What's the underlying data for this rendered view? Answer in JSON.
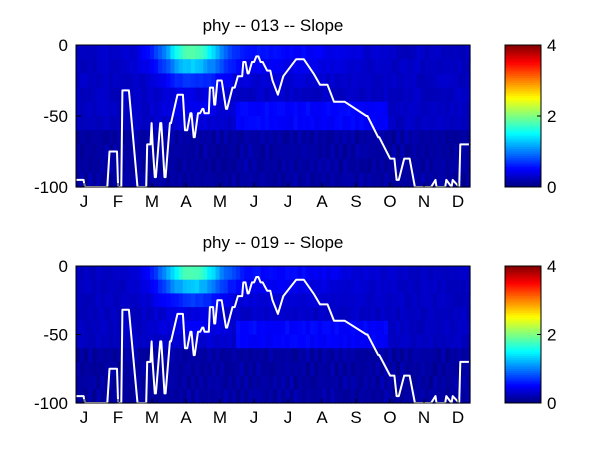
{
  "colors": {
    "colormap": "jet",
    "line": "#ffffff",
    "axis": "#000000",
    "background": "#ffffff"
  },
  "chart_data": [
    {
      "type": "heatmap",
      "title": "phy -- 013 -- Slope",
      "x_tick_labels": [
        "J",
        "F",
        "M",
        "A",
        "M",
        "J",
        "J",
        "A",
        "S",
        "O",
        "N",
        "D"
      ],
      "x_domain": [
        1,
        366
      ],
      "y_ticks": [
        0,
        -50,
        -100
      ],
      "y_tick_labels": [
        "0",
        "-50",
        "-100"
      ],
      "ylim": [
        -100,
        0
      ],
      "colorbar": {
        "ticks": [
          0,
          2,
          4
        ],
        "tick_labels": [
          "0",
          "2",
          "4"
        ],
        "clim": [
          0,
          4
        ]
      },
      "depth_bins": [
        -5,
        -15,
        -25,
        -35,
        -45,
        -55,
        -65,
        -75,
        -85,
        -95
      ],
      "grid": false,
      "line_series": {
        "x": [
          1,
          8,
          9,
          30,
          32,
          39,
          40,
          43,
          44,
          50,
          58,
          66,
          67,
          70,
          71,
          72,
          74,
          75,
          79,
          80,
          83,
          84,
          88,
          89,
          95,
          100,
          102,
          104,
          107,
          108,
          110,
          111,
          114,
          116,
          118,
          119,
          120,
          124,
          125,
          128,
          129,
          130,
          132,
          136,
          140,
          141,
          146,
          148,
          151,
          155,
          156,
          158,
          160,
          161,
          164,
          166,
          168,
          170,
          172,
          174,
          178,
          181,
          183,
          188,
          193,
          205,
          212,
          221,
          227,
          234,
          240,
          250,
          270,
          271,
          281,
          282,
          292,
          296,
          298,
          300,
          305,
          310,
          315,
          330,
          334,
          335,
          343,
          344,
          349,
          350,
          356,
          357,
          361,
          365
        ],
        "y": [
          -95,
          -95,
          -100,
          -100,
          -75,
          -75,
          -100,
          -100,
          -32,
          -32,
          -100,
          -100,
          -70,
          -70,
          -55,
          -70,
          -93,
          -93,
          -55,
          -55,
          -93,
          -93,
          -55,
          -55,
          -35,
          -35,
          -60,
          -60,
          -48,
          -48,
          -65,
          -65,
          -48,
          -48,
          -45,
          -45,
          -48,
          -48,
          -30,
          -30,
          -42,
          -42,
          -25,
          -25,
          -45,
          -45,
          -30,
          -30,
          -22,
          -22,
          -12,
          -12,
          -20,
          -20,
          -12,
          -12,
          -8,
          -8,
          -12,
          -12,
          -18,
          -18,
          -25,
          -35,
          -22,
          -10,
          -10,
          -20,
          -28,
          -28,
          -40,
          -40,
          -50,
          -50,
          -65,
          -65,
          -80,
          -80,
          -95,
          -95,
          -80,
          -80,
          -100,
          -100,
          -95,
          -100,
          -100,
          -95,
          -100,
          -95,
          -100,
          -70,
          -70,
          -70
        ]
      }
    },
    {
      "type": "heatmap",
      "title": "phy -- 019 -- Slope",
      "x_tick_labels": [
        "J",
        "F",
        "M",
        "A",
        "M",
        "J",
        "J",
        "A",
        "S",
        "O",
        "N",
        "D"
      ],
      "x_domain": [
        1,
        366
      ],
      "y_ticks": [
        0,
        -50,
        -100
      ],
      "y_tick_labels": [
        "0",
        "-50",
        "-100"
      ],
      "ylim": [
        -100,
        0
      ],
      "colorbar": {
        "ticks": [
          0,
          2,
          4
        ],
        "tick_labels": [
          "0",
          "2",
          "4"
        ],
        "clim": [
          0,
          4
        ]
      },
      "depth_bins": [
        -5,
        -15,
        -25,
        -35,
        -45,
        -55,
        -65,
        -75,
        -85,
        -95
      ],
      "grid": false,
      "line_series": {
        "x": [
          1,
          8,
          9,
          30,
          32,
          39,
          40,
          43,
          44,
          50,
          58,
          66,
          67,
          70,
          71,
          72,
          74,
          75,
          79,
          80,
          83,
          84,
          88,
          89,
          95,
          100,
          102,
          104,
          107,
          108,
          110,
          111,
          114,
          116,
          118,
          119,
          120,
          124,
          125,
          128,
          129,
          130,
          132,
          136,
          140,
          141,
          146,
          148,
          151,
          155,
          156,
          158,
          160,
          161,
          164,
          166,
          168,
          170,
          172,
          174,
          178,
          181,
          183,
          188,
          193,
          205,
          212,
          221,
          227,
          234,
          240,
          250,
          270,
          271,
          281,
          282,
          292,
          296,
          298,
          300,
          305,
          310,
          315,
          330,
          334,
          335,
          343,
          344,
          349,
          350,
          356,
          357,
          361,
          365
        ],
        "y": [
          -95,
          -95,
          -100,
          -100,
          -75,
          -75,
          -100,
          -100,
          -32,
          -32,
          -100,
          -100,
          -70,
          -70,
          -55,
          -70,
          -93,
          -93,
          -55,
          -55,
          -93,
          -93,
          -55,
          -55,
          -35,
          -35,
          -60,
          -60,
          -48,
          -48,
          -65,
          -65,
          -48,
          -48,
          -45,
          -45,
          -48,
          -48,
          -30,
          -30,
          -42,
          -42,
          -25,
          -25,
          -45,
          -45,
          -30,
          -30,
          -22,
          -22,
          -12,
          -12,
          -20,
          -20,
          -12,
          -12,
          -8,
          -8,
          -12,
          -12,
          -18,
          -18,
          -25,
          -35,
          -22,
          -10,
          -10,
          -20,
          -28,
          -28,
          -40,
          -40,
          -50,
          -50,
          -65,
          -65,
          -80,
          -80,
          -95,
          -95,
          -80,
          -80,
          -100,
          -100,
          -95,
          -100,
          -100,
          -95,
          -100,
          -95,
          -100,
          -70,
          -70,
          -70
        ]
      }
    }
  ]
}
